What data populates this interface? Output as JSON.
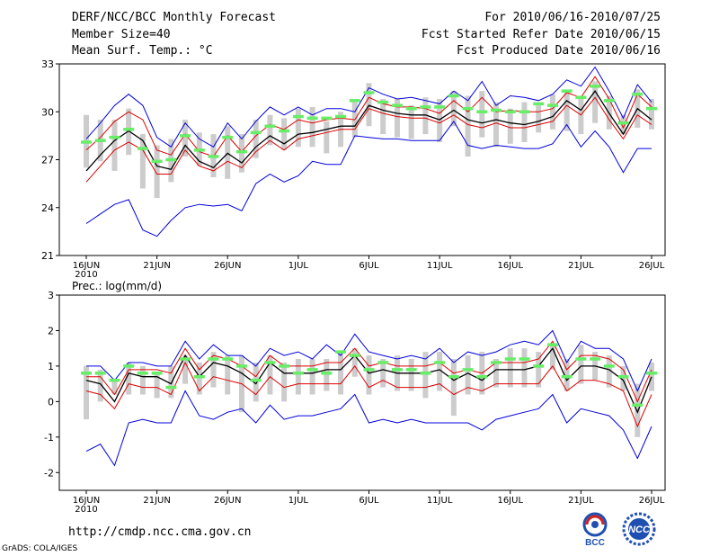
{
  "header": {
    "title": "DERF/NCC/BCC Monthly Forecast",
    "member_size": "Member Size=40",
    "variable": "Mean Surf. Temp.: °C",
    "period": "For 2010/06/16-2010/07/25",
    "started": "Fcst Started Refer Date 2010/06/15",
    "produced": "Fcst Produced Date 2010/06/16"
  },
  "footer": {
    "url": "http://cmdp.ncc.cma.gov.cn",
    "credit": "GrADS: COLA/IGES"
  },
  "logos": {
    "bcc_text": "BCC",
    "ncc_text": "NCC"
  },
  "colors": {
    "max_min": "#0000dd",
    "spread": "#dd0000",
    "ensemble_mean": "#000000",
    "forecast_marker": "#66ee66",
    "box": "#cccccc"
  },
  "chart_data": [
    {
      "type": "line",
      "title": "Mean Surf. Temp.: °C",
      "ylim": [
        21,
        33
      ],
      "yticks": [
        21,
        24,
        27,
        30,
        33
      ],
      "x_tick_labels": [
        "16JUN",
        "21JUN",
        "26JUN",
        "1JUL",
        "6JUL",
        "11JUL",
        "16JUL",
        "21JUL",
        "26JUL"
      ],
      "x_year_label": "2010",
      "n_days": 40,
      "series": [
        {
          "name": "max",
          "values": [
            28.3,
            29.3,
            30.4,
            31.1,
            30.4,
            28.4,
            27.8,
            29.3,
            28.3,
            27.8,
            29.3,
            28.3,
            29.4,
            30.3,
            29.8,
            30.3,
            29.8,
            30.2,
            30.2,
            30.0,
            31.5,
            31.1,
            30.8,
            30.9,
            30.7,
            30.5,
            31.3,
            30.7,
            31.9,
            30.4,
            31.0,
            30.9,
            30.7,
            31.1,
            32.0,
            31.6,
            32.8,
            31.3,
            29.6,
            31.7,
            30.6
          ]
        },
        {
          "name": "upper",
          "values": [
            27.6,
            28.4,
            29.4,
            30.0,
            29.5,
            27.6,
            27.3,
            28.6,
            27.5,
            27.2,
            28.5,
            27.5,
            28.5,
            29.2,
            28.9,
            29.5,
            29.3,
            29.5,
            29.6,
            29.5,
            30.9,
            30.5,
            30.3,
            30.3,
            30.2,
            29.9,
            30.7,
            30.0,
            30.9,
            30.0,
            30.1,
            30.0,
            30.0,
            30.2,
            31.2,
            30.9,
            32.2,
            30.8,
            29.0,
            31.1,
            30.3
          ]
        },
        {
          "name": "mean",
          "values": [
            26.3,
            27.3,
            28.2,
            28.8,
            28.2,
            26.6,
            26.4,
            27.9,
            26.9,
            26.5,
            27.4,
            26.8,
            27.8,
            28.5,
            28.0,
            28.6,
            28.7,
            28.9,
            29.1,
            29.1,
            30.4,
            30.1,
            29.9,
            29.8,
            29.8,
            29.5,
            30.1,
            29.5,
            29.3,
            29.5,
            29.3,
            29.2,
            29.4,
            29.7,
            30.7,
            30.1,
            31.3,
            29.9,
            28.6,
            30.2,
            29.5
          ]
        },
        {
          "name": "lower",
          "values": [
            25.6,
            26.6,
            27.6,
            28.1,
            27.6,
            26.1,
            26.1,
            27.6,
            26.6,
            26.3,
            26.9,
            26.5,
            27.5,
            28.2,
            27.6,
            28.3,
            28.5,
            28.7,
            28.9,
            28.9,
            30.2,
            29.9,
            29.7,
            29.6,
            29.6,
            29.3,
            29.8,
            29.2,
            29.0,
            29.3,
            29.0,
            29.0,
            29.2,
            29.4,
            30.4,
            29.8,
            30.9,
            29.5,
            28.3,
            29.8,
            29.2
          ]
        },
        {
          "name": "min",
          "values": [
            23.0,
            23.6,
            24.2,
            24.5,
            22.6,
            22.2,
            23.2,
            24.0,
            24.2,
            24.1,
            24.2,
            23.8,
            25.5,
            26.1,
            25.6,
            26.0,
            26.9,
            26.7,
            26.7,
            28.5,
            28.4,
            28.3,
            28.3,
            28.2,
            28.2,
            28.2,
            29.4,
            27.9,
            27.7,
            27.9,
            27.8,
            27.7,
            27.7,
            28.0,
            29.2,
            27.8,
            28.8,
            27.8,
            26.2,
            27.7,
            27.7
          ]
        }
      ],
      "forecast_markers": [
        28.1,
        28.2,
        28.4,
        28.9,
        27.7,
        26.9,
        27.0,
        28.5,
        27.6,
        27.2,
        28.4,
        27.5,
        28.7,
        29.1,
        28.8,
        29.7,
        29.6,
        29.6,
        29.7,
        30.7,
        31.2,
        30.6,
        30.4,
        30.2,
        30.3,
        30.3,
        31.0,
        30.2,
        30.0,
        30.1,
        30.0,
        30.0,
        30.5,
        30.4,
        31.3,
        30.9,
        31.6,
        30.7,
        29.3,
        31.1,
        30.2
      ],
      "boxes": [
        [
          26.5,
          29.8
        ],
        [
          26.9,
          29.5
        ],
        [
          26.3,
          29.5
        ],
        [
          27.3,
          30.2
        ],
        [
          25.2,
          28.6
        ],
        [
          24.6,
          27.9
        ],
        [
          25.6,
          28.3
        ],
        [
          27.2,
          29.5
        ],
        [
          26.6,
          28.7
        ],
        [
          25.9,
          28.6
        ],
        [
          25.8,
          29.1
        ],
        [
          26.2,
          28.6
        ],
        [
          27.1,
          29.5
        ],
        [
          27.9,
          29.8
        ],
        [
          27.6,
          29.6
        ],
        [
          27.8,
          30.2
        ],
        [
          27.8,
          30.3
        ],
        [
          27.4,
          29.4
        ],
        [
          27.8,
          30.0
        ],
        [
          28.4,
          30.6
        ],
        [
          29.1,
          31.8
        ],
        [
          28.6,
          30.8
        ],
        [
          28.4,
          30.8
        ],
        [
          28.3,
          30.4
        ],
        [
          28.6,
          30.9
        ],
        [
          28.1,
          30.8
        ],
        [
          29.1,
          31.3
        ],
        [
          27.2,
          31.0
        ],
        [
          28.4,
          31.3
        ],
        [
          27.8,
          30.6
        ],
        [
          28.0,
          30.2
        ],
        [
          28.1,
          30.6
        ],
        [
          28.7,
          30.4
        ],
        [
          28.9,
          31.1
        ],
        [
          28.8,
          31.3
        ],
        [
          28.6,
          30.9
        ],
        [
          29.3,
          31.9
        ],
        [
          28.9,
          31.0
        ],
        [
          28.6,
          29.8
        ],
        [
          29.0,
          31.4
        ],
        [
          28.9,
          30.8
        ]
      ]
    },
    {
      "type": "line",
      "title": "Prec.: log(mm/d)",
      "ylim": [
        -2.5,
        3
      ],
      "yticks": [
        -2,
        -1,
        0,
        1,
        2,
        3
      ],
      "x_tick_labels": [
        "16JUN",
        "21JUN",
        "26JUN",
        "1JUL",
        "6JUL",
        "11JUL",
        "16JUL",
        "21JUL",
        "26JUL"
      ],
      "x_year_label": "2010",
      "n_days": 40,
      "series": [
        {
          "name": "max",
          "values": [
            1.0,
            1.0,
            0.6,
            1.1,
            1.1,
            1.0,
            1.0,
            1.7,
            1.2,
            1.6,
            1.3,
            1.3,
            1.0,
            1.5,
            1.3,
            1.4,
            1.2,
            1.6,
            1.3,
            1.9,
            1.4,
            1.3,
            1.2,
            1.3,
            1.2,
            1.5,
            1.1,
            1.4,
            1.3,
            1.4,
            1.6,
            1.7,
            1.6,
            2.0,
            1.1,
            1.7,
            1.5,
            1.5,
            1.2,
            0.3,
            1.2
          ]
        },
        {
          "name": "upper",
          "values": [
            0.7,
            0.7,
            0.2,
            0.9,
            0.9,
            0.9,
            0.8,
            1.5,
            0.9,
            1.3,
            1.2,
            1.0,
            0.7,
            1.3,
            1.0,
            1.0,
            1.0,
            1.1,
            1.1,
            1.5,
            1.0,
            1.1,
            1.0,
            1.0,
            1.0,
            1.1,
            0.8,
            0.9,
            0.8,
            1.1,
            1.1,
            1.1,
            1.2,
            1.7,
            0.9,
            1.3,
            1.3,
            1.2,
            0.9,
            0.0,
            0.9
          ]
        },
        {
          "name": "mean",
          "values": [
            0.6,
            0.5,
            0.0,
            0.8,
            0.7,
            0.7,
            0.5,
            1.3,
            0.7,
            1.1,
            1.0,
            0.8,
            0.5,
            1.1,
            0.8,
            0.8,
            0.8,
            0.9,
            0.9,
            1.3,
            0.8,
            0.9,
            0.8,
            0.8,
            0.8,
            0.9,
            0.6,
            0.8,
            0.6,
            0.9,
            0.9,
            0.9,
            1.0,
            1.5,
            0.6,
            1.0,
            1.0,
            0.9,
            0.6,
            -0.3,
            0.7
          ]
        },
        {
          "name": "lower",
          "values": [
            0.3,
            0.2,
            -0.2,
            0.5,
            0.4,
            0.4,
            0.2,
            1.1,
            0.3,
            0.7,
            0.6,
            0.5,
            0.2,
            0.7,
            0.4,
            0.5,
            0.5,
            0.5,
            0.5,
            1.0,
            0.4,
            0.6,
            0.4,
            0.4,
            0.4,
            0.5,
            0.2,
            0.4,
            0.3,
            0.5,
            0.5,
            0.5,
            0.5,
            1.0,
            0.3,
            0.6,
            0.6,
            0.5,
            0.3,
            -0.7,
            0.2
          ]
        },
        {
          "name": "min",
          "values": [
            -1.4,
            -1.2,
            -1.8,
            -0.6,
            -0.5,
            -0.6,
            -0.6,
            0.3,
            -0.4,
            -0.5,
            -0.3,
            -0.2,
            -0.6,
            -0.1,
            -0.5,
            -0.4,
            -0.4,
            -0.3,
            -0.2,
            0.2,
            -0.6,
            -0.5,
            -0.6,
            -0.5,
            -0.6,
            -0.6,
            -0.6,
            -0.6,
            -0.8,
            -0.5,
            -0.4,
            -0.3,
            -0.2,
            0.2,
            -0.6,
            -0.2,
            -0.3,
            -0.4,
            -0.8,
            -1.6,
            -0.7
          ]
        }
      ],
      "forecast_markers": [
        0.8,
        0.8,
        0.6,
        1.0,
        0.8,
        0.8,
        0.4,
        1.2,
        0.7,
        1.2,
        1.2,
        1.0,
        0.6,
        1.1,
        1.0,
        0.8,
        0.9,
        0.8,
        1.4,
        1.3,
        0.9,
        1.1,
        0.9,
        0.9,
        0.8,
        1.1,
        0.7,
        0.9,
        0.7,
        1.1,
        1.2,
        1.2,
        1.0,
        1.6,
        0.7,
        1.2,
        1.2,
        1.0,
        0.7,
        -0.1,
        0.8
      ],
      "boxes": [
        [
          -0.5,
          1.0
        ],
        [
          0.0,
          0.9
        ],
        [
          0.2,
          0.6
        ],
        [
          0.2,
          1.1
        ],
        [
          0.2,
          1.0
        ],
        [
          0.1,
          0.8
        ],
        [
          0.1,
          1.0
        ],
        [
          0.5,
          1.3
        ],
        [
          0.2,
          1.1
        ],
        [
          0.4,
          1.4
        ],
        [
          0.2,
          1.3
        ],
        [
          -0.3,
          1.3
        ],
        [
          0.0,
          1.1
        ],
        [
          0.2,
          1.3
        ],
        [
          0.0,
          1.1
        ],
        [
          0.2,
          1.2
        ],
        [
          0.2,
          1.2
        ],
        [
          0.3,
          1.2
        ],
        [
          0.2,
          1.4
        ],
        [
          0.7,
          1.5
        ],
        [
          0.2,
          1.3
        ],
        [
          0.4,
          1.2
        ],
        [
          0.3,
          1.3
        ],
        [
          0.3,
          1.2
        ],
        [
          0.1,
          1.4
        ],
        [
          0.3,
          1.4
        ],
        [
          -0.4,
          1.2
        ],
        [
          0.2,
          1.3
        ],
        [
          0.2,
          1.4
        ],
        [
          0.4,
          1.2
        ],
        [
          0.4,
          1.5
        ],
        [
          0.4,
          1.5
        ],
        [
          0.4,
          1.4
        ],
        [
          0.9,
          1.6
        ],
        [
          0.3,
          1.2
        ],
        [
          0.5,
          1.6
        ],
        [
          0.6,
          1.4
        ],
        [
          0.4,
          1.3
        ],
        [
          0.3,
          1.0
        ],
        [
          -1.0,
          0.5
        ],
        [
          0.3,
          1.1
        ]
      ]
    }
  ]
}
